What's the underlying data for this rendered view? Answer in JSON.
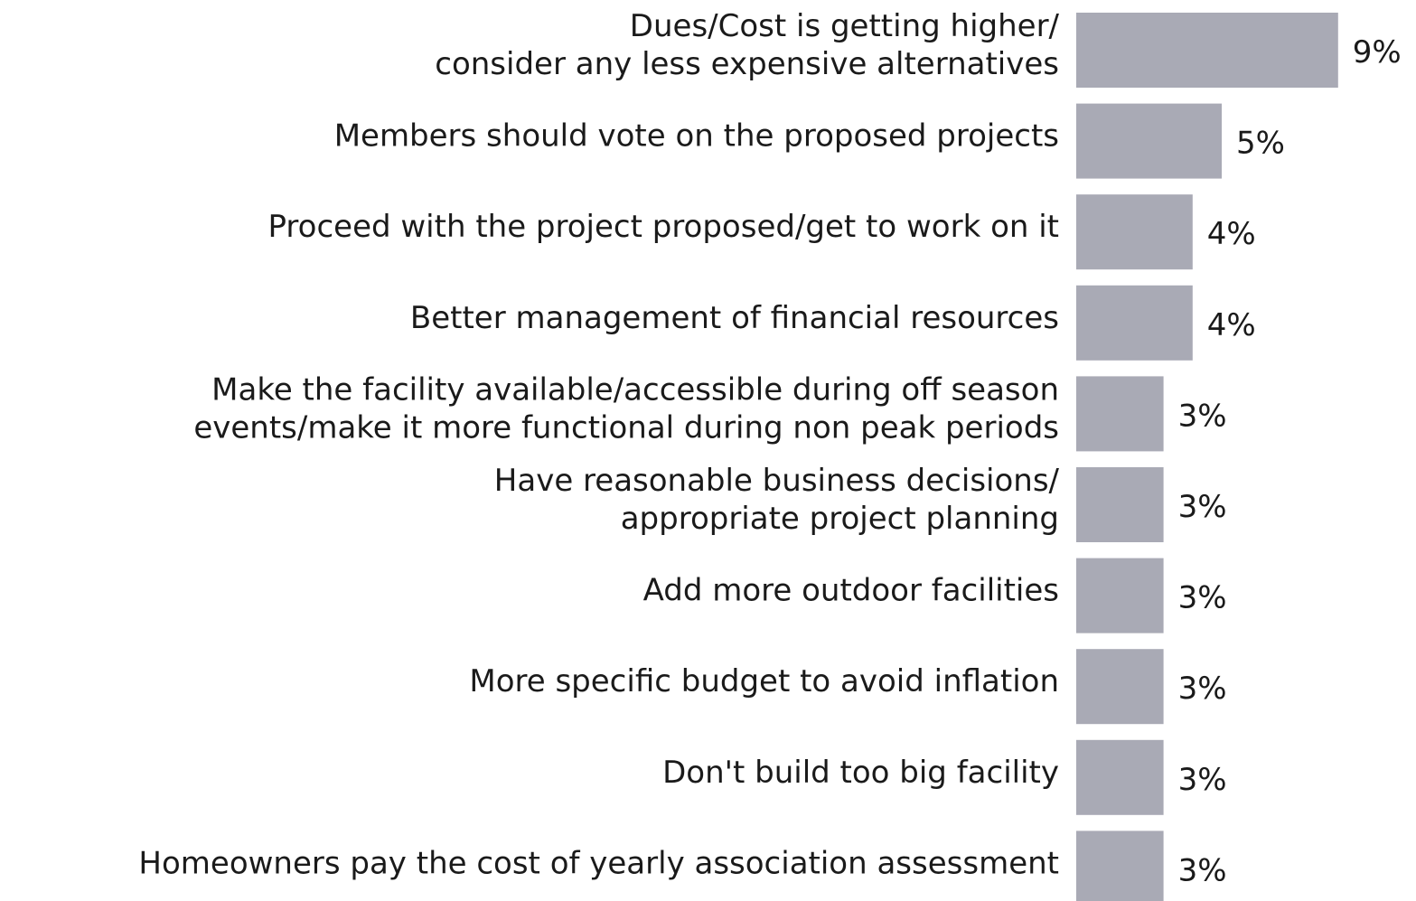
{
  "chart_data": {
    "type": "bar",
    "orientation": "horizontal",
    "categories": [
      [
        "Dues/Cost is getting higher/",
        "consider any less expensive alternatives"
      ],
      [
        "Members should vote on the proposed projects"
      ],
      [
        "Proceed with the project proposed/get to work on it"
      ],
      [
        "Better management of financial resources"
      ],
      [
        "Make the facility available/accessible during off season",
        "events/make it more functional during non peak periods"
      ],
      [
        "Have reasonable business decisions/",
        "appropriate project planning"
      ],
      [
        "Add more outdoor facilities"
      ],
      [
        "More specific budget to avoid inflation"
      ],
      [
        "Don't build too big facility"
      ],
      [
        "Homeowners pay the cost of yearly association assessment"
      ]
    ],
    "values": [
      9,
      5,
      4,
      4,
      3,
      3,
      3,
      3,
      3,
      3
    ],
    "value_labels": [
      "9%",
      "5%",
      "4%",
      "4%",
      "3%",
      "3%",
      "3%",
      "3%",
      "3%",
      "3%"
    ],
    "color": "#a9aab5"
  }
}
